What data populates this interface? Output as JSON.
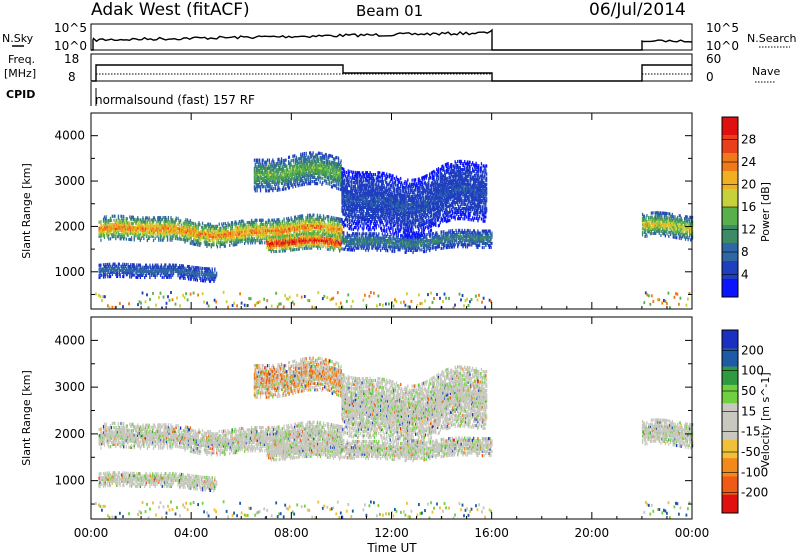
{
  "header": {
    "radar": "Adak West (fitACF)",
    "beam": "Beam 01",
    "date": "06/Jul/2014"
  },
  "panels": {
    "nsky_label": "N.Sky",
    "nsky_ticks": [
      "10^5",
      "10^0"
    ],
    "nsearch_label": "N.Search",
    "nsearch_ticks": [
      "10^5",
      "10^0"
    ],
    "freq_label": "Freq.",
    "freq_unit": "[MHz]",
    "freq_ticks": [
      "18",
      "8"
    ],
    "nave_label": "Nave",
    "nave_ticks": [
      "60",
      "0"
    ],
    "cpid_label": "CPID",
    "cpid_value": "normalsound (fast) 157 RF"
  },
  "colors": {
    "power": [
      "#0a14ff",
      "#1f3fbf",
      "#2f66a6",
      "#3d8b66",
      "#58b04a",
      "#c7d23a",
      "#f0b021",
      "#f07a1a",
      "#e8401a",
      "#e01010"
    ],
    "velocity": [
      "#e01010",
      "#ef5a14",
      "#f28a1a",
      "#f0c03a",
      "#c8c8c0",
      "#c8c8c0",
      "#70d040",
      "#2f9a3f",
      "#1f5aa6",
      "#1a30c0"
    ],
    "scatter_gray": "#c8c8c0"
  },
  "chart_data": [
    {
      "type": "heatmap",
      "title": "Power",
      "xlabel": "Time UT",
      "ylabel": "Slant Range [km]",
      "xlim": [
        "00:00",
        "24:00"
      ],
      "x_ticks": [
        "00:00",
        "04:00",
        "08:00",
        "12:00",
        "16:00",
        "20:00",
        "00:00"
      ],
      "ylim": [
        180,
        4500
      ],
      "y_ticks": [
        1000,
        2000,
        3000,
        4000
      ],
      "colorbar_label": "Power [dB]",
      "colorbar_ticks": [
        4,
        8,
        12,
        16,
        20,
        24,
        28
      ],
      "colorbar_range": [
        0,
        30
      ],
      "data_gaps": [
        [
          "16:00",
          "22:00"
        ]
      ],
      "scatter_bands": [
        {
          "t_start": 0.3,
          "t_end": 10.0,
          "range_km": [
            1650,
            2150
          ],
          "peak_db": 22
        },
        {
          "t_start": 7.0,
          "t_end": 10.0,
          "range_km": [
            1450,
            1800
          ],
          "peak_db": 28
        },
        {
          "t_start": 10.0,
          "t_end": 16.0,
          "range_km": [
            1500,
            1900
          ],
          "peak_db": 10
        },
        {
          "t_start": 6.5,
          "t_end": 10.0,
          "range_km": [
            2800,
            3500
          ],
          "peak_db": 14
        },
        {
          "t_start": 10.0,
          "t_end": 15.8,
          "range_km": [
            2000,
            3300
          ],
          "peak_db": 6
        },
        {
          "t_start": 0.3,
          "t_end": 5.0,
          "range_km": [
            850,
            1150
          ],
          "peak_db": 8
        },
        {
          "t_start": 22.0,
          "t_end": 24.0,
          "range_km": [
            1700,
            2200
          ],
          "peak_db": 18
        }
      ]
    },
    {
      "type": "heatmap",
      "title": "Velocity",
      "xlabel": "Time UT",
      "ylabel": "Slant Range [km]",
      "xlim": [
        "00:00",
        "24:00"
      ],
      "x_ticks": [
        "00:00",
        "04:00",
        "08:00",
        "12:00",
        "16:00",
        "20:00",
        "00:00"
      ],
      "ylim": [
        180,
        4500
      ],
      "y_ticks": [
        1000,
        2000,
        3000,
        4000
      ],
      "colorbar_label": "Velocity [m s^-1]",
      "colorbar_ticks": [
        -200,
        -100,
        -50,
        -15,
        15,
        50,
        100,
        200
      ],
      "colorbar_range": [
        -250,
        250
      ],
      "data_gaps": [
        [
          "16:00",
          "22:00"
        ]
      ]
    }
  ]
}
